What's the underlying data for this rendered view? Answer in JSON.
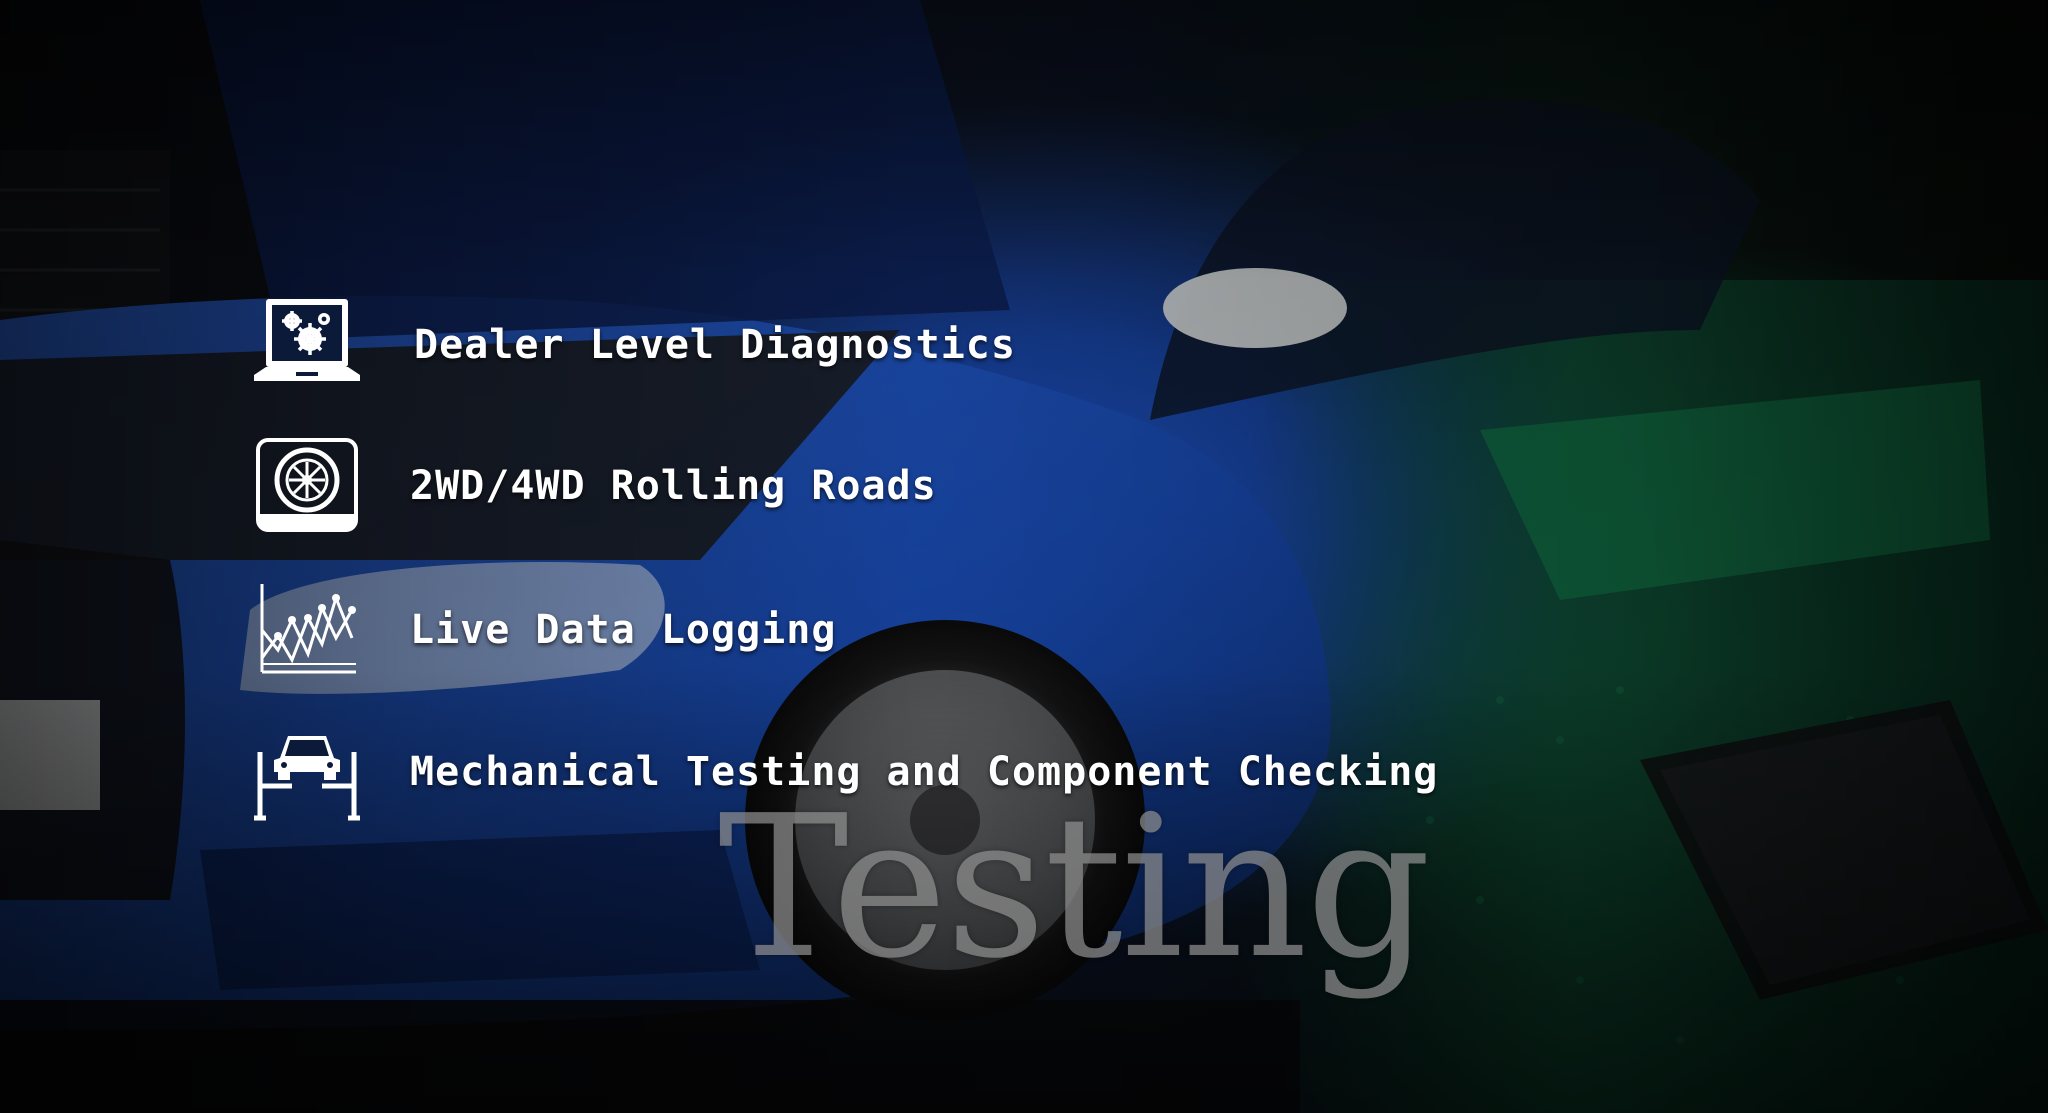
{
  "features": [
    {
      "label": "Dealer Level Diagnostics",
      "icon": "laptop-gears-icon"
    },
    {
      "label": "2WD/4WD Rolling Roads",
      "icon": "wheel-roller-icon"
    },
    {
      "label": "Live Data Logging",
      "icon": "line-graph-icon"
    },
    {
      "label": "Mechanical Testing and Component Checking",
      "icon": "car-lift-icon"
    }
  ],
  "watermark": {
    "text": "Testing"
  },
  "colors": {
    "text": "#ffffff",
    "watermark": "#8e8e8e",
    "car_blue": "#1d4fb8",
    "pcb_green": "#0f5a3a"
  }
}
